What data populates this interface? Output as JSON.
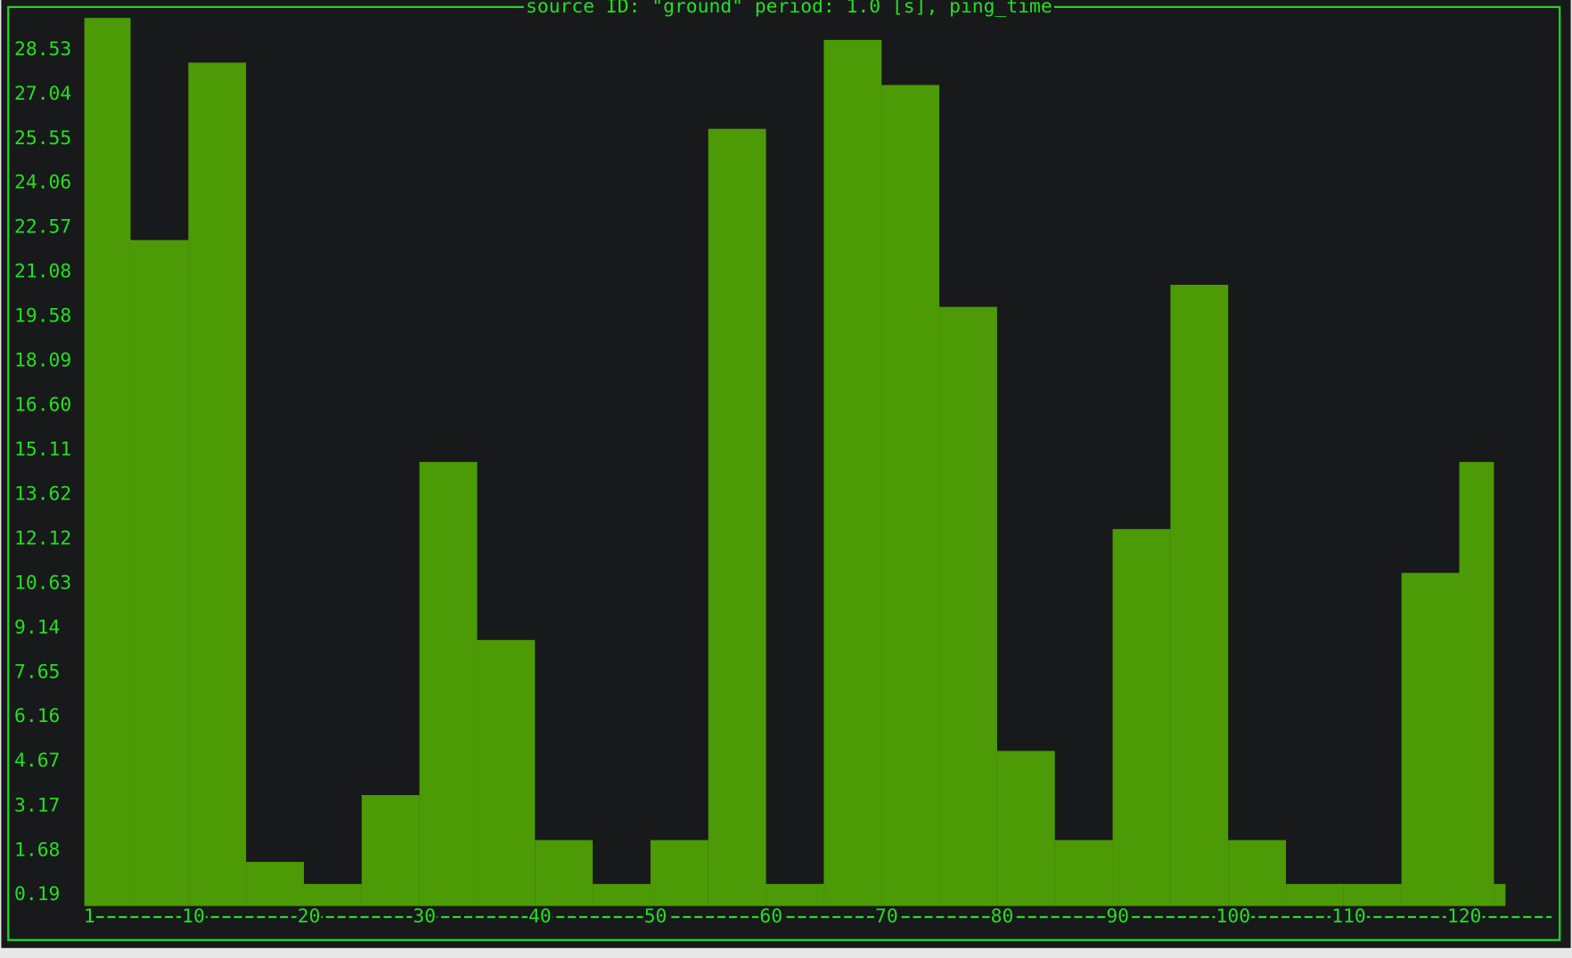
{
  "chart_data": {
    "type": "histogram",
    "title": "source ID: \"ground\" period: 1.0 [s], ping_time",
    "bins": [
      1,
      5,
      10,
      15,
      20,
      25,
      30,
      35,
      40,
      45,
      50,
      55,
      60,
      65,
      70,
      75,
      80,
      85,
      90,
      95,
      100,
      105,
      110,
      115,
      120,
      123,
      124
    ],
    "values": [
      29.6,
      22.15,
      28.1,
      1.3,
      0.56,
      3.54,
      14.71,
      8.74,
      2.03,
      0.56,
      2.03,
      25.88,
      0.56,
      28.86,
      27.35,
      19.91,
      5.02,
      2.03,
      12.46,
      20.65,
      2.03,
      0.56,
      0.56,
      10.99,
      14.71,
      0.56
    ],
    "color": "#4c9a06",
    "xlim": [
      1,
      128
    ],
    "xticks": [
      1,
      10,
      20,
      30,
      40,
      50,
      60,
      70,
      80,
      90,
      100,
      110,
      120
    ],
    "ylim": [
      -0.18,
      29.63
    ],
    "yticks": [
      0.19,
      1.68,
      3.17,
      4.67,
      6.16,
      7.65,
      9.14,
      10.63,
      12.12,
      13.62,
      15.11,
      {
        "value": 16.6,
        "label": "16.60"
      },
      18.09,
      19.58,
      21.08,
      22.57,
      24.06,
      25.55,
      27.04,
      28.53
    ],
    "grid": false
  }
}
